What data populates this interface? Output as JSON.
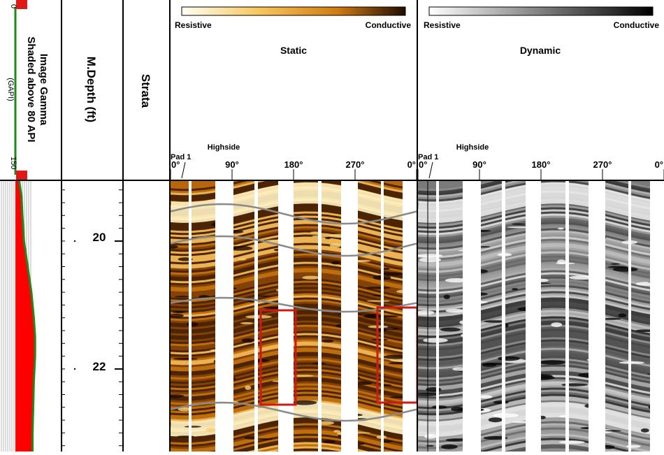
{
  "gamma_track": {
    "title_line1": "Image Gamma",
    "title_line2": "Shaded above 80 API",
    "unit": "(GAPI)",
    "scale_min": "0",
    "scale_max": "150",
    "shade_threshold_api": 80,
    "curve_color": "#1a8a1a",
    "shade_color": "#ff0000",
    "marker_color": "#e01818",
    "curve_api": [
      {
        "depth": 19.05,
        "api": 12
      },
      {
        "depth": 19.3,
        "api": 20
      },
      {
        "depth": 19.6,
        "api": 23
      },
      {
        "depth": 20.0,
        "api": 28
      },
      {
        "depth": 20.4,
        "api": 40
      },
      {
        "depth": 20.8,
        "api": 52
      },
      {
        "depth": 21.2,
        "api": 60
      },
      {
        "depth": 21.5,
        "api": 64
      },
      {
        "depth": 21.8,
        "api": 64
      },
      {
        "depth": 22.2,
        "api": 60
      },
      {
        "depth": 22.6,
        "api": 58
      },
      {
        "depth": 23.0,
        "api": 56
      },
      {
        "depth": 23.3,
        "api": 56
      }
    ]
  },
  "depth_track": {
    "title": "M.Depth (ft)",
    "labels": [
      "20",
      "22"
    ],
    "major_ticks_ft": [
      20,
      22
    ],
    "depth_range_ft": [
      19.05,
      23.3
    ]
  },
  "strata_track": {
    "title": "Strata"
  },
  "static_track": {
    "title": "Static",
    "scale_left": "Resistive",
    "scale_right": "Conductive",
    "pad_label": "Pad 1",
    "highside_label": "Highside",
    "azimuth_labels": [
      "0°",
      "90°",
      "180°",
      "270°",
      "0°"
    ],
    "palette": [
      "#fffde8",
      "#f8c050",
      "#d47a10",
      "#2a1000"
    ]
  },
  "dynamic_track": {
    "title": "Dynamic",
    "scale_left": "Resistive",
    "scale_right": "Conductive",
    "pad_label": "Pad 1",
    "highside_label": "Highside",
    "azimuth_labels": [
      "0°",
      "90°",
      "180°",
      "270°",
      "0°"
    ],
    "palette": [
      "#ffffff",
      "#000000"
    ]
  },
  "annotations": {
    "highlight_color": "#d01818",
    "bed_line_color": "#8a8a8a"
  }
}
